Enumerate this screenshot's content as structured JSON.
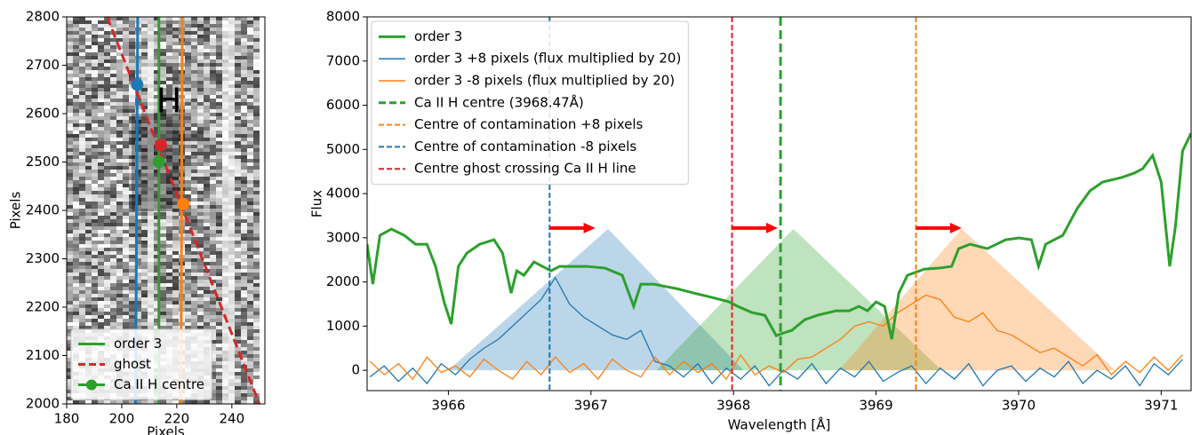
{
  "chart_data": [
    {
      "type": "image",
      "xlabel": "Pixels",
      "ylabel": "Pixels",
      "annotation": "H",
      "xlim": [
        180,
        252
      ],
      "ylim": [
        2000,
        2800
      ],
      "xticks": [
        180,
        200,
        220,
        240
      ],
      "yticks": [
        2000,
        2100,
        2200,
        2300,
        2400,
        2500,
        2600,
        2700,
        2800
      ],
      "legend": "lower left",
      "series": [
        {
          "name": "order 3",
          "color": "#2ca02c",
          "x": [
            213.5,
            213.5
          ],
          "values": [
            2000,
            2800
          ]
        },
        {
          "color": "#1f77b4",
          "x": [
            205.0,
            205.8
          ],
          "values": [
            2000,
            2800
          ]
        },
        {
          "color": "#ff7f0e",
          "x": [
            221.5,
            222.0
          ],
          "values": [
            2000,
            2800
          ]
        },
        {
          "name": "ghost",
          "color": "#d62728",
          "dashed": true,
          "x": [
            194.7,
            250
          ],
          "values": [
            2800,
            2000
          ]
        }
      ],
      "points": {
        "name": "Ca II H centre",
        "color": "#2ca02c",
        "colors": [
          "#1f77b4",
          "#d62728",
          "#2ca02c",
          "#ff7f0e"
        ],
        "x": [
          205.6,
          214.2,
          213.5,
          222.3
        ],
        "values": [
          2660,
          2535,
          2500,
          2413
        ]
      }
    },
    {
      "type": "line",
      "xlabel": "Wavelength [Å]",
      "ylabel": "Flux",
      "xlim": [
        3965.43,
        3971.21
      ],
      "ylim": [
        -460,
        8000
      ],
      "xticks": [
        3966,
        3967,
        3968,
        3969,
        3970,
        3971
      ],
      "yticks": [
        0,
        1000,
        2000,
        3000,
        4000,
        5000,
        6000,
        7000,
        8000
      ],
      "legend": "upper left",
      "areas": [
        {
          "color": "#1f77b4",
          "x": [
            3966.0,
            3967.12,
            3968.07
          ],
          "values": [
            0,
            3200,
            0
          ]
        },
        {
          "color": "#2ca02c",
          "x": [
            3967.46,
            3968.42,
            3969.46
          ],
          "values": [
            0,
            3200,
            0
          ]
        },
        {
          "color": "#ff7f0e",
          "x": [
            3968.74,
            3969.6,
            3970.68
          ],
          "values": [
            0,
            3200,
            0
          ]
        }
      ],
      "series": [
        {
          "name": "order 3",
          "color": "#2ca02c",
          "x": [
            3965.43,
            3965.47,
            3965.52,
            3965.6,
            3965.69,
            3965.77,
            3965.85,
            3965.91,
            3965.97,
            3966.02,
            3966.07,
            3966.13,
            3966.22,
            3966.32,
            3966.38,
            3966.44,
            3966.48,
            3966.53,
            3966.6,
            3966.66,
            3966.72,
            3966.78,
            3966.88,
            3966.97,
            3967.1,
            3967.22,
            3967.3,
            3967.35,
            3967.44,
            3967.6,
            3967.72,
            3967.85,
            3967.97,
            3968.03,
            3968.13,
            3968.22,
            3968.3,
            3968.35,
            3968.41,
            3968.5,
            3968.59,
            3968.72,
            3968.81,
            3968.88,
            3968.94,
            3969.0,
            3969.06,
            3969.11,
            3969.16,
            3969.22,
            3969.34,
            3969.44,
            3969.53,
            3969.58,
            3969.66,
            3969.78,
            3969.91,
            3970.0,
            3970.09,
            3970.14,
            3970.19,
            3970.31,
            3970.41,
            3970.5,
            3970.59,
            3970.72,
            3970.81,
            3970.87,
            3970.94,
            3971.0,
            3971.06,
            3971.1,
            3971.15,
            3971.21
          ],
          "values": [
            2854,
            1950,
            3055,
            3196,
            3055,
            2854,
            2854,
            2352,
            1548,
            1045,
            2352,
            2653,
            2854,
            2955,
            2653,
            1749,
            2251,
            2151,
            2452,
            2352,
            2251,
            2352,
            2352,
            2352,
            2312,
            2151,
            1447,
            1950,
            1950,
            1849,
            1749,
            1648,
            1548,
            1447,
            1307,
            1246,
            784,
            844,
            905,
            1146,
            1246,
            1347,
            1347,
            1447,
            1347,
            1548,
            1447,
            704,
            1749,
            2151,
            2291,
            2312,
            2352,
            2754,
            2854,
            2754,
            2955,
            2995,
            2955,
            2352,
            2854,
            3055,
            3658,
            4060,
            4261,
            4362,
            4462,
            4563,
            4864,
            4261,
            2352,
            3256,
            4965,
            5367
          ]
        },
        {
          "name": "order 3 +8 pixels (flux multiplied by 20)",
          "color": "#1f77b4",
          "x": [
            3965.45,
            3965.55,
            3965.65,
            3965.75,
            3965.85,
            3965.95,
            3966.05,
            3966.15,
            3966.25,
            3966.35,
            3966.45,
            3966.55,
            3966.65,
            3966.75,
            3966.85,
            3966.95,
            3967.05,
            3967.15,
            3967.25,
            3967.35,
            3967.45,
            3967.55,
            3967.65,
            3967.75,
            3967.85,
            3967.95,
            3968.05,
            3968.15,
            3968.25,
            3968.35,
            3968.45,
            3968.55,
            3968.65,
            3968.75,
            3968.85,
            3968.95,
            3969.05,
            3969.15,
            3969.25,
            3969.35,
            3969.45,
            3969.55,
            3969.65,
            3969.75,
            3969.85,
            3969.95,
            3970.05,
            3970.15,
            3970.25,
            3970.35,
            3970.45,
            3970.55,
            3970.65,
            3970.75,
            3970.85,
            3970.95,
            3971.05,
            3971.15
          ],
          "values": [
            -150,
            100,
            -250,
            50,
            -300,
            150,
            -100,
            250,
            500,
            700,
            1000,
            1300,
            1600,
            2100,
            1500,
            1200,
            1000,
            800,
            700,
            900,
            200,
            100,
            -150,
            150,
            -300,
            50,
            -200,
            100,
            -350,
            0,
            -200,
            150,
            -300,
            50,
            -150,
            200,
            -250,
            -50,
            100,
            -300,
            50,
            -200,
            150,
            -350,
            0,
            100,
            -250,
            50,
            -150,
            200,
            -300,
            0,
            -200,
            100,
            -350,
            150,
            -100,
            250
          ]
        },
        {
          "name": "order 3 -8 pixels (flux multiplied by 20)",
          "color": "#ff7f0e",
          "x": [
            3965.45,
            3965.55,
            3965.65,
            3965.75,
            3965.85,
            3965.95,
            3966.05,
            3966.15,
            3966.25,
            3966.35,
            3966.45,
            3966.55,
            3966.65,
            3966.75,
            3966.85,
            3966.95,
            3967.05,
            3967.15,
            3967.25,
            3967.35,
            3967.45,
            3967.55,
            3967.65,
            3967.75,
            3967.85,
            3967.95,
            3968.05,
            3968.15,
            3968.25,
            3968.35,
            3968.45,
            3968.55,
            3968.65,
            3968.75,
            3968.85,
            3968.95,
            3969.05,
            3969.15,
            3969.25,
            3969.35,
            3969.45,
            3969.55,
            3969.65,
            3969.75,
            3969.85,
            3969.95,
            3970.05,
            3970.15,
            3970.25,
            3970.35,
            3970.45,
            3970.55,
            3970.65,
            3970.75,
            3970.85,
            3970.95,
            3971.05,
            3971.15
          ],
          "values": [
            200,
            -100,
            150,
            -200,
            300,
            -50,
            100,
            -150,
            250,
            0,
            -200,
            200,
            -100,
            300,
            -50,
            150,
            -200,
            250,
            0,
            -150,
            300,
            -100,
            200,
            -50,
            150,
            -200,
            350,
            -100,
            100,
            -50,
            250,
            300,
            500,
            700,
            1000,
            1100,
            1000,
            1300,
            1500,
            1700,
            1600,
            1200,
            1100,
            1300,
            900,
            800,
            600,
            400,
            500,
            300,
            100,
            350,
            -100,
            200,
            -50,
            300,
            0,
            350
          ]
        }
      ],
      "vlines": [
        {
          "name": "Ca II H centre (3968.47Å)",
          "color": "#2ca02c",
          "x": 3968.33
        },
        {
          "name": "Centre of contamination +8 pixels",
          "color": "#ff7f0e",
          "x": 3969.28
        },
        {
          "name": "Centre of contamination -8 pixels",
          "color": "#1f77b4",
          "x": 3966.71
        },
        {
          "name": "Centre ghost crossing Ca II H line",
          "color": "#d62728",
          "x": 3967.99
        }
      ],
      "arrows": {
        "color": "#ff0000",
        "x_from": [
          3966.71,
          3967.99,
          3969.28
        ],
        "x_to": [
          3967.03,
          3968.31,
          3969.6
        ],
        "values": [
          3220,
          3220,
          3220
        ]
      }
    }
  ]
}
